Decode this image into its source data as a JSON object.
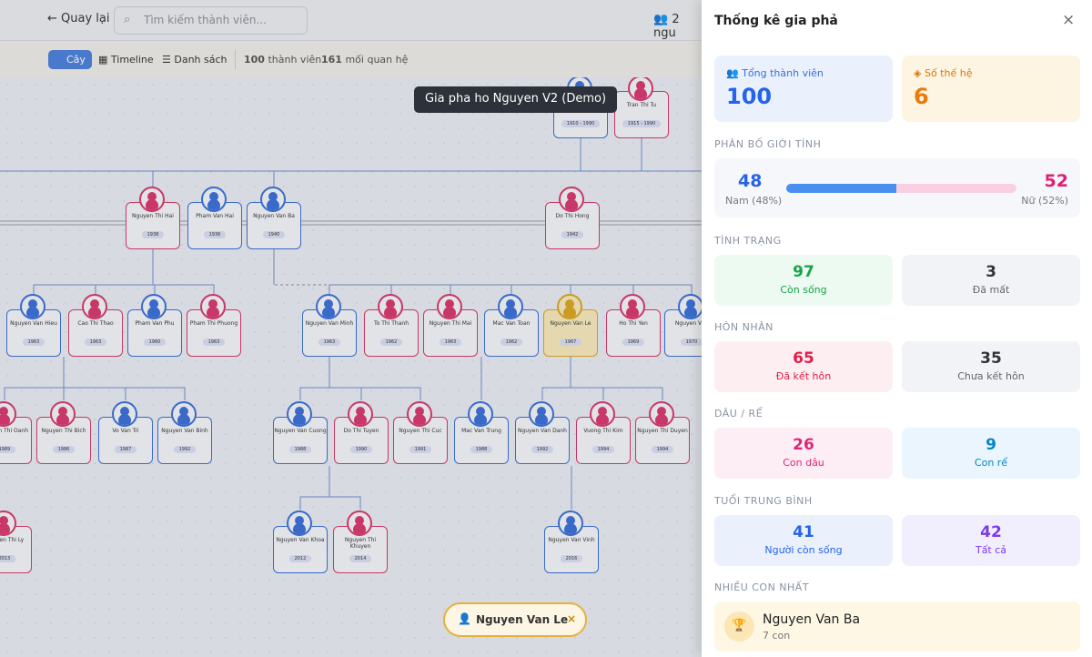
{
  "toolbar": {
    "back": "Quay lại",
    "search_placeholder": "Tìm kiếm thành viên...",
    "people": "2 ngu"
  },
  "tabs": [
    "Cây",
    "Timeline",
    "Danh sách"
  ],
  "stats_bar": {
    "members_value": 100,
    "members_label": "thành viên",
    "relations_value": 161,
    "relations_label": "mối quan hệ"
  },
  "tooltip": "Gia pha ho Nguyen V2 (Demo)",
  "nodes": [
    {
      "years": "1910 - 1990",
      "color": "#3b6fd6"
    },
    {
      "name": "Tran Thi Tu",
      "years": "1915 - 1990",
      "color": "#d6386b"
    },
    {
      "name": "Nguyen Thi Hai",
      "years": "1938",
      "color": "#d6386b"
    },
    {
      "name": "Pham Van Hai",
      "years": "1936",
      "color": "#3b6fd6"
    },
    {
      "name": "Nguyen Van Ba",
      "years": "1940",
      "color": "#3b6fd6"
    },
    {
      "name": "Do Thi Hong",
      "years": "1942",
      "color": "#d6386b"
    },
    {
      "name": "Nguyen Van Hieu",
      "years": "1963",
      "color": "#3b6fd6"
    },
    {
      "name": "Cao Thi Thao",
      "years": "1963",
      "color": "#d6386b"
    },
    {
      "name": "Pham Van Phu",
      "years": "1960",
      "color": "#3b6fd6"
    },
    {
      "name": "Pham Thi Phuong",
      "years": "1963",
      "color": "#d6386b"
    },
    {
      "name": "Nguyen Van Minh",
      "years": "1963",
      "color": "#3b6fd6"
    },
    {
      "name": "To Thi Thanh",
      "years": "1962",
      "color": "#d6386b"
    },
    {
      "name": "Nguyen Thi Mai",
      "years": "1963",
      "color": "#d6386b"
    },
    {
      "name": "Mac Van Toan",
      "years": "1962",
      "color": "#3b6fd6"
    },
    {
      "name": "Nguyen Van Le",
      "years": "1967",
      "color": "#d9a521"
    },
    {
      "name": "Ho Thi Yen",
      "years": "1969",
      "color": "#d6386b"
    },
    {
      "name": "Nguyen Van",
      "years": "1970",
      "color": "#3b6fd6"
    },
    {
      "name": "Nguyen Thi Oanh",
      "years": "1989",
      "color": "#d6386b"
    },
    {
      "name": "Nguyen Thi Bich",
      "years": "1986",
      "color": "#d6386b"
    },
    {
      "name": "Vo Van Tri",
      "years": "1987",
      "color": "#3b6fd6"
    },
    {
      "name": "Nguyen Van Binh",
      "years": "1992",
      "color": "#3b6fd6"
    },
    {
      "name": "Nguyen Van Cuong",
      "years": "1988",
      "color": "#3b6fd6"
    },
    {
      "name": "Do Thi Tuyen",
      "years": "1990",
      "color": "#d6386b"
    },
    {
      "name": "Nguyen Thi Cuc",
      "years": "1991",
      "color": "#d6386b"
    },
    {
      "name": "Mac Van Trung",
      "years": "1988",
      "color": "#3b6fd6"
    },
    {
      "name": "Nguyen Van Danh",
      "years": "1992",
      "color": "#3b6fd6"
    },
    {
      "name": "Vuong Thi Kim",
      "years": "1994",
      "color": "#d6386b"
    },
    {
      "name": "Nguyen Thi Duyen",
      "years": "1994",
      "color": "#d6386b"
    },
    {
      "name": "Nguyen Thi Ly",
      "years": "2013",
      "color": "#d6386b"
    },
    {
      "name": "Nguyen Van Khoa",
      "years": "2012",
      "color": "#3b6fd6"
    },
    {
      "name": "Nguyen Thi Khuyen",
      "years": "2014",
      "color": "#d6386b"
    },
    {
      "name": "Nguyen Van Vinh",
      "years": "2016",
      "color": "#3b6fd6"
    }
  ],
  "selected_chip": "Nguyen Van Le",
  "panel": {
    "title": "Thống kê gia phả",
    "total": {
      "label": "Tổng thành viên",
      "value": 100
    },
    "generations": {
      "label": "Số thế hệ",
      "value": 6
    },
    "gender": {
      "heading": "PHÂN BỐ GIỚI TÍNH",
      "male": 48,
      "male_label": "Nam (48%)",
      "female": 52,
      "female_label": "Nữ (52%)"
    },
    "status": {
      "heading": "TÌNH TRẠNG",
      "alive": 97,
      "alive_label": "Còn sống",
      "dead": 3,
      "dead_label": "Đã mất"
    },
    "marriage": {
      "heading": "HÔN NHÂN",
      "married": 65,
      "married_label": "Đã kết hôn",
      "single": 35,
      "single_label": "Chưa kết hôn"
    },
    "inlaws": {
      "heading": "DÂU / RỂ",
      "daughters": 26,
      "daughters_label": "Con dâu",
      "sons": 9,
      "sons_label": "Con rể"
    },
    "age": {
      "heading": "TUỔI TRUNG BÌNH",
      "alive": 41,
      "alive_label": "Người còn sống",
      "all": 42,
      "all_label": "Tất cả"
    },
    "most_children": {
      "heading": "NHIỀU CON NHẤT",
      "name": "Nguyen Van Ba",
      "count": "7 con"
    }
  }
}
